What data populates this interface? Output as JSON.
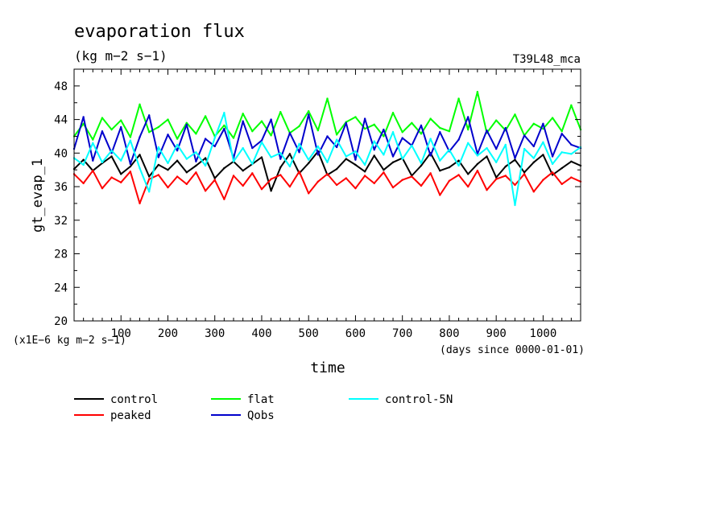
{
  "figure": {
    "title": "evaporation flux",
    "units_line": "(kg m−2 s−1)",
    "run_label": "T39L48_mca"
  },
  "chart_data": {
    "type": "line",
    "title": "evaporation flux",
    "subtitle": "(kg m−2 s−1)",
    "xlabel": "time",
    "ylabel": "gt_evap_1",
    "x_unit_note": "(days since 0000-01-01)",
    "y_unit_note": "(x1E−6 kg m−2 s−1)",
    "xlim": [
      0,
      1080
    ],
    "ylim": [
      20,
      50
    ],
    "x_ticks": [
      100,
      200,
      300,
      400,
      500,
      600,
      700,
      800,
      900,
      1000
    ],
    "y_ticks": [
      20,
      24,
      28,
      32,
      36,
      40,
      44,
      48
    ],
    "grid": false,
    "legend_position": "bottom-left",
    "series": [
      {
        "name": "control",
        "color": "#000000",
        "x": [
          0,
          20,
          40,
          60,
          80,
          100,
          120,
          140,
          160,
          180,
          200,
          220,
          240,
          260,
          280,
          300,
          320,
          340,
          360,
          380,
          400,
          420,
          440,
          460,
          480,
          500,
          520,
          540,
          560,
          580,
          600,
          620,
          640,
          660,
          680,
          700,
          720,
          740,
          760,
          780,
          800,
          820,
          840,
          860,
          880,
          900,
          920,
          940,
          960,
          980,
          1000,
          1020,
          1040,
          1060,
          1080
        ],
        "values": [
          38.1,
          39.2,
          37.9,
          38.8,
          39.6,
          37.5,
          38.4,
          39.8,
          37.2,
          38.6,
          38.0,
          39.1,
          37.7,
          38.5,
          39.4,
          37.0,
          38.2,
          39.0,
          37.9,
          38.7,
          39.5,
          35.5,
          38.3,
          39.9,
          37.6,
          38.8,
          40.2,
          37.4,
          38.1,
          39.3,
          38.6,
          37.8,
          39.7,
          38.0,
          38.9,
          39.4,
          37.3,
          38.5,
          40.0,
          37.9,
          38.3,
          39.1,
          37.5,
          38.7,
          39.6,
          37.1,
          38.4,
          39.2,
          37.7,
          38.9,
          39.8,
          37.4,
          38.2,
          39.0,
          38.5
        ]
      },
      {
        "name": "peaked",
        "color": "#ff0000",
        "x": [
          0,
          20,
          40,
          60,
          80,
          100,
          120,
          140,
          160,
          180,
          200,
          220,
          240,
          260,
          280,
          300,
          320,
          340,
          360,
          380,
          400,
          420,
          440,
          460,
          480,
          500,
          520,
          540,
          560,
          580,
          600,
          620,
          640,
          660,
          680,
          700,
          720,
          740,
          760,
          780,
          800,
          820,
          840,
          860,
          880,
          900,
          920,
          940,
          960,
          980,
          1000,
          1020,
          1040,
          1060,
          1080
        ],
        "values": [
          37.5,
          36.4,
          37.9,
          35.8,
          37.1,
          36.5,
          37.8,
          34.0,
          36.9,
          37.4,
          35.9,
          37.2,
          36.3,
          37.7,
          35.5,
          36.8,
          34.5,
          37.3,
          36.1,
          37.6,
          35.7,
          36.9,
          37.4,
          36.0,
          37.8,
          35.2,
          36.6,
          37.5,
          36.2,
          37.0,
          35.8,
          37.3,
          36.4,
          37.7,
          35.9,
          36.8,
          37.2,
          36.1,
          37.6,
          35.0,
          36.7,
          37.4,
          36.0,
          37.9,
          35.6,
          36.9,
          37.3,
          36.2,
          37.5,
          35.4,
          36.8,
          37.7,
          36.3,
          37.1,
          36.6
        ]
      },
      {
        "name": "flat",
        "color": "#00ff00",
        "x": [
          0,
          20,
          40,
          60,
          80,
          100,
          120,
          140,
          160,
          180,
          200,
          220,
          240,
          260,
          280,
          300,
          320,
          340,
          360,
          380,
          400,
          420,
          440,
          460,
          480,
          500,
          520,
          540,
          560,
          580,
          600,
          620,
          640,
          660,
          680,
          700,
          720,
          740,
          760,
          780,
          800,
          820,
          840,
          860,
          880,
          900,
          920,
          940,
          960,
          980,
          1000,
          1020,
          1040,
          1060,
          1080
        ],
        "values": [
          42.0,
          43.5,
          41.6,
          44.2,
          42.8,
          43.9,
          41.9,
          45.8,
          42.5,
          43.1,
          44.0,
          41.7,
          43.6,
          42.3,
          44.4,
          42.0,
          43.3,
          41.8,
          44.7,
          42.6,
          43.8,
          42.1,
          44.9,
          42.4,
          43.2,
          45.0,
          42.7,
          46.5,
          42.2,
          43.7,
          44.3,
          42.9,
          43.4,
          42.0,
          44.8,
          42.5,
          43.6,
          42.3,
          44.1,
          43.0,
          42.6,
          46.5,
          42.8,
          47.3,
          42.4,
          43.9,
          42.7,
          44.6,
          42.1,
          43.5,
          42.9,
          44.2,
          42.6,
          45.7,
          42.8
        ]
      },
      {
        "name": "Qobs",
        "color": "#0000cc",
        "x": [
          0,
          20,
          40,
          60,
          80,
          100,
          120,
          140,
          160,
          180,
          200,
          220,
          240,
          260,
          280,
          300,
          320,
          340,
          360,
          380,
          400,
          420,
          440,
          460,
          480,
          500,
          520,
          540,
          560,
          580,
          600,
          620,
          640,
          660,
          680,
          700,
          720,
          740,
          760,
          780,
          800,
          820,
          840,
          860,
          880,
          900,
          920,
          940,
          960,
          980,
          1000,
          1020,
          1040,
          1060,
          1080
        ],
        "values": [
          40.5,
          44.3,
          39.1,
          42.6,
          40.0,
          43.1,
          38.7,
          41.9,
          44.5,
          39.5,
          42.2,
          40.3,
          43.4,
          39.0,
          41.7,
          40.8,
          42.9,
          39.4,
          43.8,
          40.6,
          41.5,
          44.0,
          39.3,
          42.4,
          40.1,
          44.6,
          39.8,
          42.0,
          40.7,
          43.6,
          39.2,
          44.1,
          40.4,
          42.8,
          39.6,
          41.8,
          40.9,
          43.3,
          39.7,
          42.5,
          40.2,
          41.6,
          44.3,
          39.9,
          42.7,
          40.5,
          43.0,
          39.4,
          42.1,
          40.8,
          43.5,
          39.6,
          42.3,
          41.0,
          40.6
        ]
      },
      {
        "name": "control-5N",
        "color": "#00ffff",
        "x": [
          0,
          20,
          40,
          60,
          80,
          100,
          120,
          140,
          160,
          180,
          200,
          220,
          240,
          260,
          280,
          300,
          320,
          340,
          360,
          380,
          400,
          420,
          440,
          460,
          480,
          500,
          520,
          540,
          560,
          580,
          600,
          620,
          640,
          660,
          680,
          700,
          720,
          740,
          760,
          780,
          800,
          820,
          840,
          860,
          880,
          900,
          920,
          940,
          960,
          980,
          1000,
          1020,
          1040,
          1060,
          1080
        ],
        "values": [
          39.4,
          38.6,
          41.2,
          38.9,
          40.3,
          39.1,
          41.5,
          38.2,
          35.4,
          40.7,
          38.8,
          41.0,
          39.3,
          40.1,
          38.5,
          41.8,
          44.8,
          39.0,
          40.6,
          38.7,
          41.3,
          39.5,
          40.0,
          38.4,
          41.1,
          39.2,
          40.8,
          38.9,
          41.6,
          39.6,
          40.2,
          38.6,
          41.4,
          39.8,
          42.5,
          39.3,
          40.9,
          38.8,
          41.7,
          39.1,
          40.4,
          38.5,
          41.2,
          39.7,
          40.6,
          38.9,
          41.0,
          33.8,
          40.5,
          39.4,
          41.3,
          38.7,
          40.1,
          39.9,
          40.7
        ]
      }
    ]
  }
}
